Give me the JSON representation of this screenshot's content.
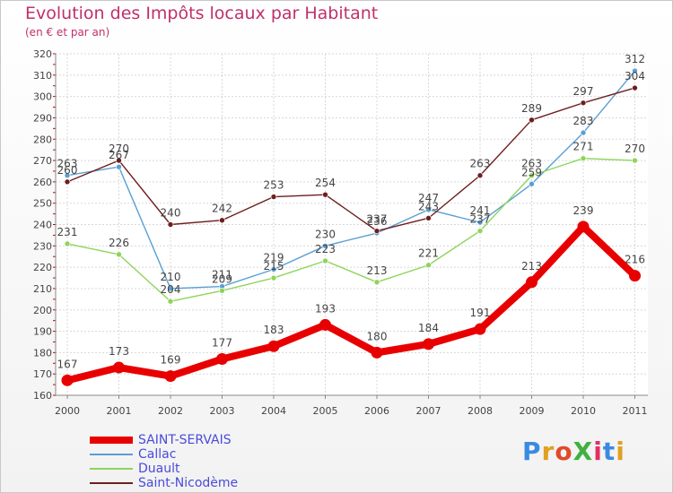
{
  "title": "Evolution des Impôts locaux par Habitant",
  "subtitle": "(en € et par an)",
  "logo": {
    "text": "ProXiti",
    "letter_colors": [
      "#3a8be0",
      "#e0a020",
      "#e04a2a",
      "#40b040",
      "#e03060",
      "#3a8be0",
      "#e0a020"
    ]
  },
  "chart_data": {
    "type": "line",
    "x": [
      "2000",
      "2001",
      "2002",
      "2003",
      "2004",
      "2005",
      "2006",
      "2007",
      "2008",
      "2009",
      "2010",
      "2011"
    ],
    "ylim": [
      160,
      320
    ],
    "yticks": [
      160,
      170,
      180,
      190,
      200,
      210,
      220,
      230,
      240,
      250,
      260,
      270,
      280,
      290,
      300,
      310,
      320
    ],
    "grid": true,
    "legend_position": "bottom-left",
    "series": [
      {
        "name": "SAINT-SERVAIS",
        "color": "#e80000",
        "emphasis": true,
        "values": [
          167,
          173,
          169,
          177,
          183,
          193,
          180,
          184,
          191,
          213,
          239,
          216
        ]
      },
      {
        "name": "Callac",
        "color": "#5a9fd4",
        "values": [
          263,
          267,
          210,
          211,
          219,
          230,
          236,
          247,
          241,
          259,
          283,
          312
        ]
      },
      {
        "name": "Duault",
        "color": "#8ed45a",
        "values": [
          231,
          226,
          204,
          209,
          215,
          223,
          213,
          221,
          237,
          263,
          271,
          270
        ]
      },
      {
        "name": "Saint-Nicodème",
        "color": "#6e1e1e",
        "values": [
          260,
          270,
          240,
          242,
          253,
          254,
          237,
          243,
          263,
          289,
          297,
          304
        ]
      }
    ]
  }
}
